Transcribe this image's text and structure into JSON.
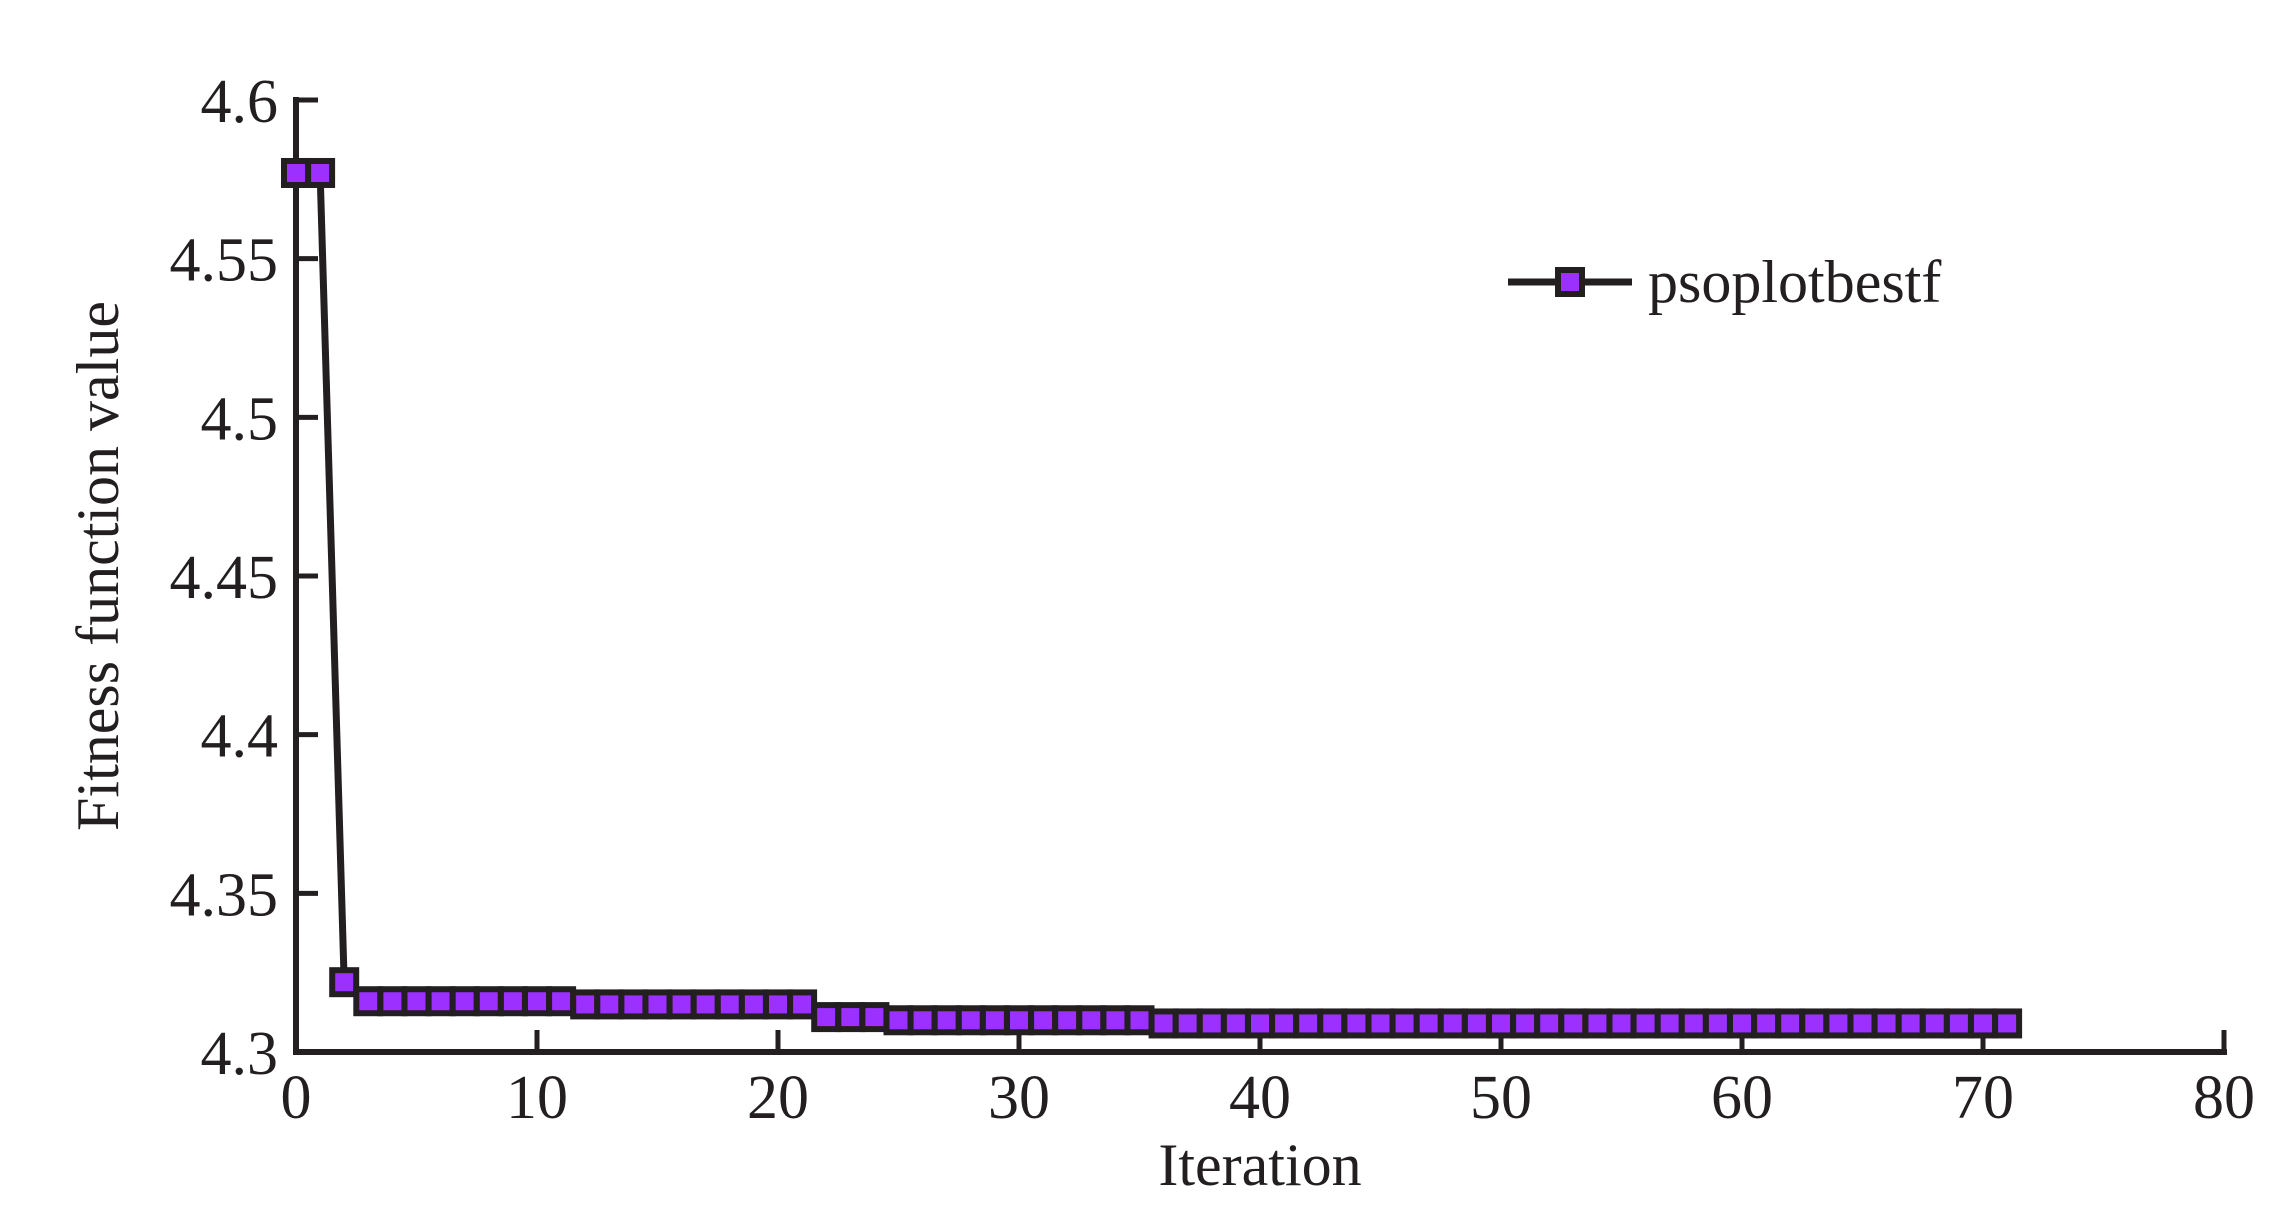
{
  "chart_data": {
    "type": "line",
    "xlabel": "Iteration",
    "ylabel": "Fitness function value",
    "xlim": [
      0,
      80
    ],
    "ylim": [
      4.3,
      4.6
    ],
    "xticks": [
      0,
      10,
      20,
      30,
      40,
      50,
      60,
      70,
      80
    ],
    "yticks": [
      4.3,
      4.35,
      4.4,
      4.45,
      4.5,
      4.55,
      4.6
    ],
    "xtick_labels": [
      "0",
      "10",
      "20",
      "30",
      "40",
      "50",
      "60",
      "70",
      "80"
    ],
    "ytick_labels": [
      "4.3",
      "4.35",
      "4.4",
      "4.45",
      "4.5",
      "4.55",
      "4.6"
    ],
    "grid": false,
    "legend_position": "top-right",
    "series": [
      {
        "name": "psoplotbestf",
        "marker": "square",
        "line_color": "#231f20",
        "marker_fill": "#9b30ff",
        "marker_edge": "#231f20",
        "x": [
          0,
          1,
          2,
          3,
          4,
          5,
          6,
          7,
          8,
          9,
          10,
          11,
          12,
          13,
          14,
          15,
          16,
          17,
          18,
          19,
          20,
          21,
          22,
          23,
          24,
          25,
          26,
          27,
          28,
          29,
          30,
          31,
          32,
          33,
          34,
          35,
          36,
          37,
          38,
          39,
          40,
          41,
          42,
          43,
          44,
          45,
          46,
          47,
          48,
          49,
          50,
          51,
          52,
          53,
          54,
          55,
          56,
          57,
          58,
          59,
          60,
          61,
          62,
          63,
          64,
          65,
          66,
          67,
          68,
          69,
          70,
          71
        ],
        "y": [
          4.577,
          4.577,
          4.322,
          4.316,
          4.316,
          4.316,
          4.316,
          4.316,
          4.316,
          4.316,
          4.316,
          4.316,
          4.315,
          4.315,
          4.315,
          4.315,
          4.315,
          4.315,
          4.315,
          4.315,
          4.315,
          4.315,
          4.311,
          4.311,
          4.311,
          4.31,
          4.31,
          4.31,
          4.31,
          4.31,
          4.31,
          4.31,
          4.31,
          4.31,
          4.31,
          4.31,
          4.309,
          4.309,
          4.309,
          4.309,
          4.309,
          4.309,
          4.309,
          4.309,
          4.309,
          4.309,
          4.309,
          4.309,
          4.309,
          4.309,
          4.309,
          4.309,
          4.309,
          4.309,
          4.309,
          4.309,
          4.309,
          4.309,
          4.309,
          4.309,
          4.309,
          4.309,
          4.309,
          4.309,
          4.309,
          4.309,
          4.309,
          4.309,
          4.309,
          4.309,
          4.309,
          4.309
        ]
      }
    ]
  }
}
